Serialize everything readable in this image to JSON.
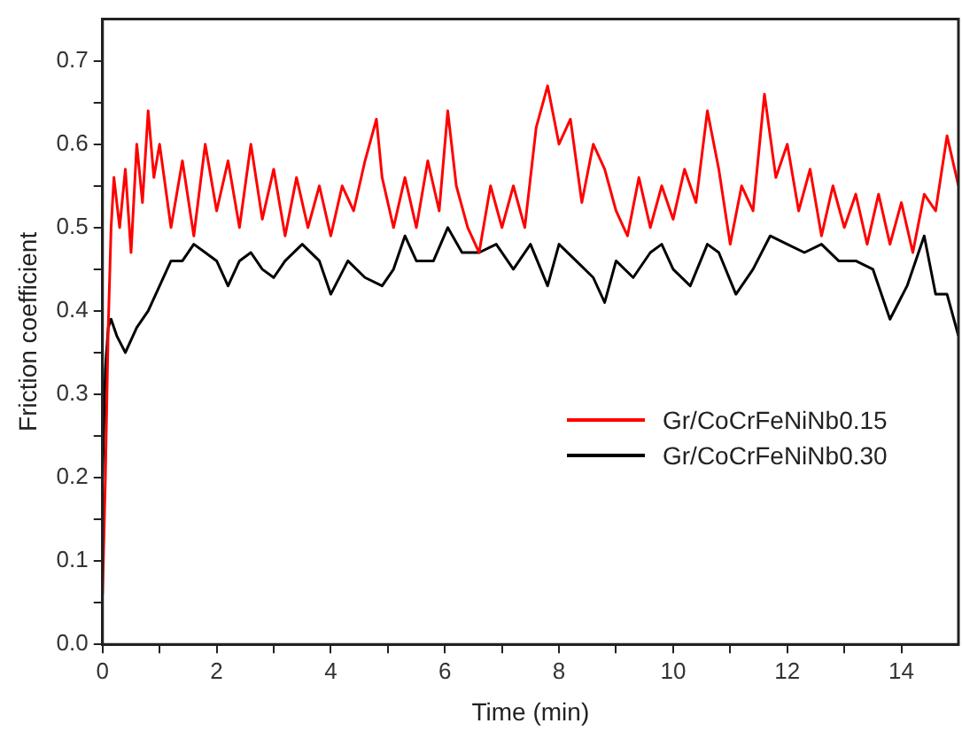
{
  "chart_data": {
    "type": "line",
    "xlabel": "Time (min)",
    "ylabel": "Friction coefficient",
    "xlim": [
      0,
      15
    ],
    "ylim": [
      0,
      0.75
    ],
    "xticks": [
      0,
      {
        "value": 1,
        "label": null
      },
      2,
      {
        "value": 3,
        "label": null
      },
      4,
      {
        "value": 5,
        "label": null
      },
      6,
      {
        "value": 7,
        "label": null
      },
      8,
      {
        "value": 9,
        "label": null
      },
      10,
      {
        "value": 11,
        "label": null
      },
      12,
      {
        "value": 13,
        "label": null
      },
      14
    ],
    "yticks": [
      {
        "value": 0,
        "label": "0.0"
      },
      {
        "value": 0.05,
        "label": null
      },
      0.1,
      {
        "value": 0.15,
        "label": null
      },
      0.2,
      {
        "value": 0.25,
        "label": null
      },
      0.3,
      {
        "value": 0.35,
        "label": null
      },
      0.4,
      {
        "value": 0.45,
        "label": null
      },
      0.5,
      {
        "value": 0.55,
        "label": null
      },
      0.6,
      {
        "value": 0.65,
        "label": null
      },
      0.7
    ],
    "grid": false,
    "legend": "right",
    "marker": "none",
    "line_style": "solid",
    "series": [
      {
        "name": "Gr/CoCrFeNiNb0.15",
        "color": "#ff0000",
        "x": [
          0,
          0.05,
          0.1,
          0.15,
          0.2,
          0.3,
          0.4,
          0.5,
          0.6,
          0.7,
          0.8,
          0.9,
          1.0,
          1.2,
          1.4,
          1.6,
          1.8,
          2.0,
          2.2,
          2.4,
          2.6,
          2.8,
          3.0,
          3.2,
          3.4,
          3.6,
          3.8,
          4.0,
          4.2,
          4.4,
          4.6,
          4.8,
          4.9,
          5.1,
          5.3,
          5.5,
          5.7,
          5.9,
          6.05,
          6.2,
          6.4,
          6.6,
          6.8,
          7.0,
          7.2,
          7.4,
          7.6,
          7.8,
          8.0,
          8.2,
          8.4,
          8.6,
          8.8,
          9.0,
          9.2,
          9.4,
          9.6,
          9.8,
          10.0,
          10.2,
          10.4,
          10.6,
          10.8,
          11.0,
          11.2,
          11.4,
          11.6,
          11.8,
          12.0,
          12.2,
          12.4,
          12.6,
          12.8,
          13.0,
          13.2,
          13.4,
          13.6,
          13.8,
          14.0,
          14.2,
          14.4,
          14.6,
          14.8,
          15.0
        ],
        "values": [
          0.06,
          0.2,
          0.38,
          0.5,
          0.56,
          0.5,
          0.57,
          0.47,
          0.6,
          0.53,
          0.64,
          0.56,
          0.6,
          0.5,
          0.58,
          0.49,
          0.6,
          0.52,
          0.58,
          0.5,
          0.6,
          0.51,
          0.57,
          0.49,
          0.56,
          0.5,
          0.55,
          0.49,
          0.55,
          0.52,
          0.58,
          0.63,
          0.56,
          0.5,
          0.56,
          0.5,
          0.58,
          0.52,
          0.64,
          0.55,
          0.5,
          0.47,
          0.55,
          0.5,
          0.55,
          0.5,
          0.62,
          0.67,
          0.6,
          0.63,
          0.53,
          0.6,
          0.57,
          0.52,
          0.49,
          0.56,
          0.5,
          0.55,
          0.51,
          0.57,
          0.53,
          0.64,
          0.57,
          0.48,
          0.55,
          0.52,
          0.66,
          0.56,
          0.6,
          0.52,
          0.57,
          0.49,
          0.55,
          0.5,
          0.54,
          0.48,
          0.54,
          0.48,
          0.53,
          0.47,
          0.54,
          0.52,
          0.61,
          0.55
        ]
      },
      {
        "name": "Gr/CoCrFeNiNb0.30",
        "color": "#000000",
        "x": [
          0,
          0.05,
          0.1,
          0.15,
          0.25,
          0.4,
          0.6,
          0.8,
          1.0,
          1.2,
          1.4,
          1.6,
          1.8,
          2.0,
          2.2,
          2.4,
          2.6,
          2.8,
          3.0,
          3.2,
          3.5,
          3.8,
          4.0,
          4.3,
          4.6,
          4.9,
          5.1,
          5.3,
          5.5,
          5.8,
          6.05,
          6.3,
          6.6,
          6.9,
          7.2,
          7.5,
          7.8,
          8.0,
          8.3,
          8.6,
          8.8,
          9.0,
          9.3,
          9.6,
          9.8,
          10.0,
          10.3,
          10.6,
          10.8,
          11.1,
          11.4,
          11.7,
          12.0,
          12.3,
          12.6,
          12.9,
          13.2,
          13.5,
          13.8,
          14.1,
          14.4,
          14.6,
          14.8,
          15.0
        ],
        "values": [
          0.2,
          0.33,
          0.38,
          0.39,
          0.37,
          0.35,
          0.38,
          0.4,
          0.43,
          0.46,
          0.46,
          0.48,
          0.47,
          0.46,
          0.43,
          0.46,
          0.47,
          0.45,
          0.44,
          0.46,
          0.48,
          0.46,
          0.42,
          0.46,
          0.44,
          0.43,
          0.45,
          0.49,
          0.46,
          0.46,
          0.5,
          0.47,
          0.47,
          0.48,
          0.45,
          0.48,
          0.43,
          0.48,
          0.46,
          0.44,
          0.41,
          0.46,
          0.44,
          0.47,
          0.48,
          0.45,
          0.43,
          0.48,
          0.47,
          0.42,
          0.45,
          0.49,
          0.48,
          0.47,
          0.48,
          0.46,
          0.46,
          0.45,
          0.39,
          0.43,
          0.49,
          0.42,
          0.42,
          0.37
        ]
      }
    ]
  }
}
